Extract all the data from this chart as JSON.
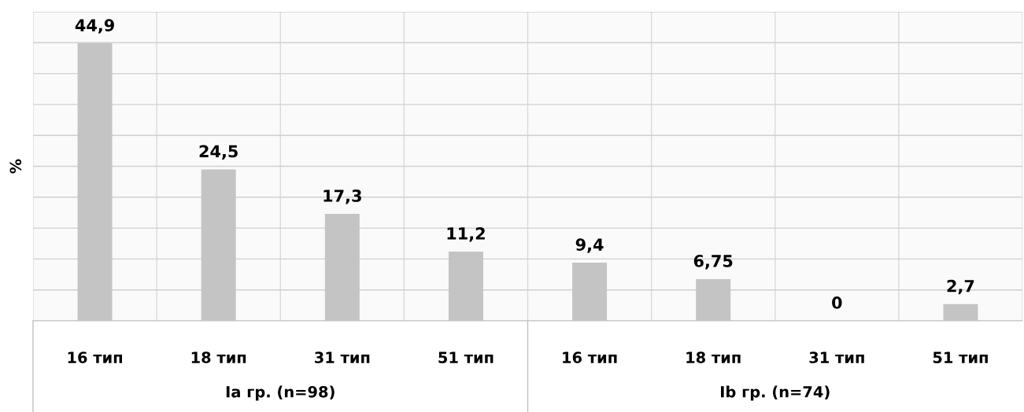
{
  "chart_data": {
    "type": "bar",
    "ylabel": "%",
    "categories": [
      "16 тип",
      "18 тип",
      "31 тип",
      "51 тип",
      "16 тип",
      "18 тип",
      "31 тип",
      "51 тип"
    ],
    "values": [
      44.9,
      24.5,
      17.3,
      11.2,
      9.4,
      6.75,
      0,
      2.7
    ],
    "value_labels": [
      "44,9",
      "24,5",
      "17,3",
      "11,2",
      "9,4",
      "6,75",
      "0",
      "2,7"
    ],
    "color": "#c4c4c4",
    "ylim": [
      0,
      50
    ],
    "yticks": [
      0,
      5,
      10,
      15,
      20,
      25,
      30,
      35,
      40,
      45,
      50
    ],
    "tick_labels": "x",
    "grid": "y",
    "annotations": [
      "Ia гр. (n=98)",
      "Ib гр. (n=74)"
    ]
  }
}
